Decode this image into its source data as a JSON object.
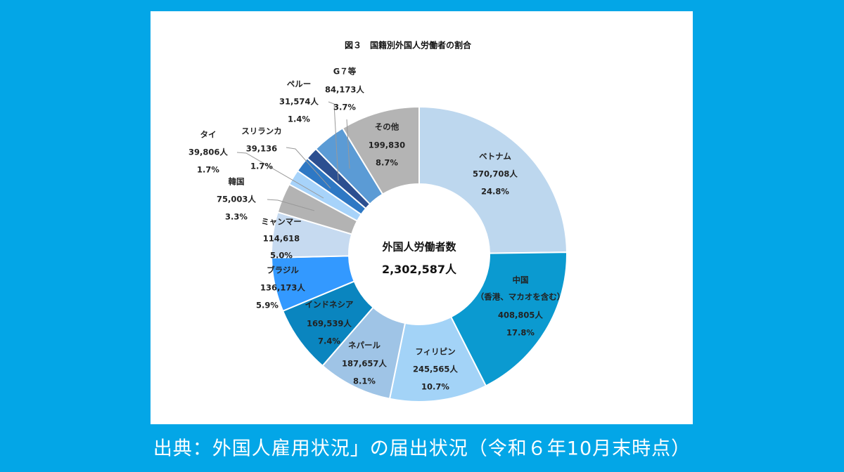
{
  "caption": "出典：外国人雇用状況」の届出状況（令和６年10月末時点）",
  "colors": {
    "background": "#03a6e7",
    "card": "#ffffff"
  },
  "chart_data": {
    "type": "pie",
    "donut": true,
    "title": "図３　国籍別外国人労働者の割合",
    "center_label": "外国人労働者数",
    "center_value": "2,302,587人",
    "total": 2302587,
    "slices": [
      {
        "name": "ベトナム",
        "value": 570708,
        "value_label": "570,708人",
        "percent": 24.8,
        "percent_label": "24.8%",
        "color": "#bdd7ee"
      },
      {
        "name": "中国",
        "sub": "（香港、マカオを含む）",
        "value": 408805,
        "value_label": "408,805人",
        "percent": 17.8,
        "percent_label": "17.8%",
        "color": "#0b9ad0"
      },
      {
        "name": "フィリピン",
        "value": 245565,
        "value_label": "245,565人",
        "percent": 10.7,
        "percent_label": "10.7%",
        "color": "#a3d3f7"
      },
      {
        "name": "ネパール",
        "value": 187657,
        "value_label": "187,657人",
        "percent": 8.1,
        "percent_label": "8.1%",
        "color": "#9fc4e6"
      },
      {
        "name": "インドネシア",
        "value": 169539,
        "value_label": "169,539人",
        "percent": 7.4,
        "percent_label": "7.4%",
        "color": "#0a85bf"
      },
      {
        "name": "ブラジル",
        "value": 136173,
        "value_label": "136,173人",
        "percent": 5.9,
        "percent_label": "5.9%",
        "color": "#3399ff"
      },
      {
        "name": "ミャンマー",
        "value": 114618,
        "value_label": "114,618",
        "percent": 5.0,
        "percent_label": "5.0%",
        "color": "#c6daf0"
      },
      {
        "name": "韓国",
        "value": 75003,
        "value_label": "75,003人",
        "percent": 3.3,
        "percent_label": "3.3%",
        "color": "#b3b3b3"
      },
      {
        "name": "タイ",
        "value": 39806,
        "value_label": "39,806人",
        "percent": 1.7,
        "percent_label": "1.7%",
        "color": "#a7d3fa"
      },
      {
        "name": "スリランカ",
        "value": 39136,
        "value_label": "39,136",
        "percent": 1.7,
        "percent_label": "1.7%",
        "color": "#2e78c4"
      },
      {
        "name": "ペルー",
        "value": 31574,
        "value_label": "31,574人",
        "percent": 1.4,
        "percent_label": "1.4%",
        "color": "#2c4f90"
      },
      {
        "name": "G７等",
        "value": 84173,
        "value_label": "84,173人",
        "percent": 3.7,
        "percent_label": "3.7%",
        "color": "#5b9bd5"
      },
      {
        "name": "その他",
        "value": 199830,
        "value_label": "199,830",
        "percent": 8.7,
        "percent_label": "8.7%",
        "color": "#b4b4b4"
      }
    ]
  }
}
